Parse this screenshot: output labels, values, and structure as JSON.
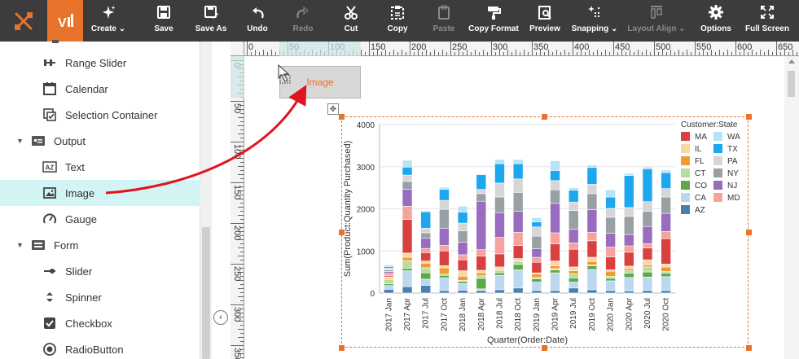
{
  "toolbar": {
    "buttons": [
      {
        "label": "Create",
        "icon": "sparkle-icon",
        "dropdown": true
      },
      {
        "label": "Save",
        "icon": "save-icon"
      },
      {
        "label": "Save As",
        "icon": "save-as-icon"
      },
      {
        "label": "Undo",
        "icon": "undo-icon"
      },
      {
        "label": "Redo",
        "icon": "redo-icon",
        "disabled": true
      },
      {
        "label": "Cut",
        "icon": "scissors-icon"
      },
      {
        "label": "Copy",
        "icon": "copy-icon"
      },
      {
        "label": "Paste",
        "icon": "paste-icon",
        "disabled": true
      },
      {
        "label": "Copy Format",
        "icon": "paint-roller-icon"
      },
      {
        "label": "Preview",
        "icon": "preview-icon"
      },
      {
        "label": "Snapping",
        "icon": "snapping-icon",
        "dropdown": true
      },
      {
        "label": "Layout Align",
        "icon": "layout-align-icon",
        "dropdown": true,
        "disabled": true
      },
      {
        "label": "Options",
        "icon": "gear-icon"
      },
      {
        "label": "Full Screen",
        "icon": "fullscreen-icon"
      }
    ]
  },
  "panel": {
    "items": [
      {
        "label": "Range Slider",
        "icon": "range-slider-icon",
        "type": "item"
      },
      {
        "label": "Calendar",
        "icon": "calendar-icon",
        "type": "item"
      },
      {
        "label": "Selection Container",
        "icon": "selection-container-icon",
        "type": "item"
      },
      {
        "label": "Output",
        "icon": "output-folder-icon",
        "type": "category"
      },
      {
        "label": "Text",
        "icon": "text-icon",
        "type": "item"
      },
      {
        "label": "Image",
        "icon": "image-icon",
        "type": "item",
        "selected": true
      },
      {
        "label": "Gauge",
        "icon": "gauge-icon",
        "type": "item"
      },
      {
        "label": "Form",
        "icon": "form-folder-icon",
        "type": "category"
      },
      {
        "label": "Slider",
        "icon": "slider-icon",
        "type": "item"
      },
      {
        "label": "Spinner",
        "icon": "spinner-icon",
        "type": "item"
      },
      {
        "label": "Checkbox",
        "icon": "checkbox-icon",
        "type": "item"
      },
      {
        "label": "RadioButton",
        "icon": "radio-button-icon",
        "type": "item"
      }
    ]
  },
  "ruler": {
    "top_labels": [
      "0",
      "50",
      "100",
      "150",
      "200",
      "250",
      "300",
      "350",
      "400",
      "450",
      "500",
      "550",
      "600",
      "650"
    ],
    "left_labels": [
      "0",
      "50",
      "100",
      "150",
      "200",
      "250",
      "300",
      "350"
    ]
  },
  "image_placeholder": {
    "label": "Image"
  },
  "colors": {
    "accent": "#e8732a",
    "toolbar": "#3c3c3c",
    "selected_row": "#d3f4f4",
    "arrow": "#e0141e"
  },
  "chart_data": {
    "type": "bar",
    "stacked": true,
    "xlabel": "Quarter(Order:Date)",
    "ylabel": "Sum(Product:Quantity Purchased)",
    "ylim": [
      0,
      4000
    ],
    "yticks": [
      0,
      1000,
      2000,
      3000,
      4000
    ],
    "legend_title": "Customer:State",
    "legend_placement": "right",
    "categories": [
      "2017 Jan",
      "2017 Apr",
      "2017 Jul",
      "2017 Oct",
      "2018 Jan",
      "2018 Apr",
      "2018 Jul",
      "2018 Oct",
      "2019 Jan",
      "2019 Apr",
      "2019 Jul",
      "2019 Oct",
      "2020 Jan",
      "2020 Apr",
      "2020 Jul",
      "2020 Oct"
    ],
    "tick_labels_shown": [
      "2017 Jan",
      "2017 Apr",
      "2017 Jul",
      "2017 Oct",
      "2018 Jan",
      "2018 Apr",
      "2018 Jul",
      "2018 Oct",
      "2019 Jan",
      "2019 Apr",
      "2019 Jul",
      "2019 Oct",
      "2020 Jan",
      "2020 Apr",
      "2020 Jul",
      "2020 Oct"
    ],
    "series": [
      {
        "name": "AZ",
        "color": "#4a7fb0",
        "values": [
          90,
          150,
          180,
          60,
          70,
          60,
          80,
          120,
          60,
          60,
          120,
          80,
          60,
          50,
          60,
          60
        ]
      },
      {
        "name": "CA",
        "color": "#bcd8f0",
        "values": [
          90,
          380,
          150,
          300,
          160,
          40,
          340,
          430,
          200,
          420,
          140,
          480,
          230,
          320,
          320,
          330
        ]
      },
      {
        "name": "CO",
        "color": "#5ea84a",
        "values": [
          40,
          60,
          150,
          60,
          50,
          250,
          60,
          130,
          80,
          70,
          100,
          90,
          60,
          100,
          120,
          80
        ]
      },
      {
        "name": "CT",
        "color": "#b6dca0",
        "values": [
          100,
          180,
          120,
          30,
          20,
          60,
          60,
          60,
          30,
          30,
          100,
          20,
          50,
          60,
          120,
          40
        ]
      },
      {
        "name": "FL",
        "color": "#f39a2e",
        "values": [
          30,
          80,
          110,
          150,
          100,
          70,
          20,
          20,
          80,
          70,
          70,
          80,
          120,
          50,
          50,
          110
        ]
      },
      {
        "name": "IL",
        "color": "#f7d8a8",
        "values": [
          30,
          100,
          50,
          50,
          130,
          60,
          60,
          60,
          30,
          110,
          90,
          100,
          30,
          60,
          120,
          70
        ]
      },
      {
        "name": "MA",
        "color": "#d94040",
        "values": [
          30,
          800,
          200,
          350,
          260,
          340,
          310,
          310,
          250,
          410,
          420,
          390,
          310,
          330,
          280,
          600
        ]
      },
      {
        "name": "MD",
        "color": "#f4a49c",
        "values": [
          60,
          310,
          100,
          130,
          120,
          150,
          390,
          310,
          120,
          260,
          150,
          200,
          230,
          150,
          100,
          170
        ]
      },
      {
        "name": "NJ",
        "color": "#9a6cc0",
        "values": [
          40,
          400,
          240,
          410,
          300,
          1150,
          590,
          500,
          200,
          700,
          330,
          540,
          330,
          270,
          410,
          430
        ]
      },
      {
        "name": "NY",
        "color": "#99a0a3",
        "values": [
          40,
          190,
          130,
          450,
          270,
          180,
          370,
          450,
          300,
          320,
          440,
          380,
          380,
          430,
          360,
          390
        ]
      },
      {
        "name": "PA",
        "color": "#d6d6d6",
        "values": [
          40,
          150,
          110,
          210,
          180,
          100,
          330,
          320,
          220,
          220,
          200,
          220,
          210,
          210,
          230,
          200
        ]
      },
      {
        "name": "TX",
        "color": "#1ea7ee",
        "values": [
          40,
          190,
          390,
          260,
          260,
          350,
          460,
          360,
          120,
          240,
          280,
          400,
          270,
          760,
          780,
          380
        ]
      },
      {
        "name": "WA",
        "color": "#b6e3f7",
        "values": [
          40,
          160,
          20,
          50,
          140,
          0,
          100,
          100,
          100,
          230,
          60,
          60,
          170,
          50,
          40,
          60
        ]
      }
    ]
  }
}
